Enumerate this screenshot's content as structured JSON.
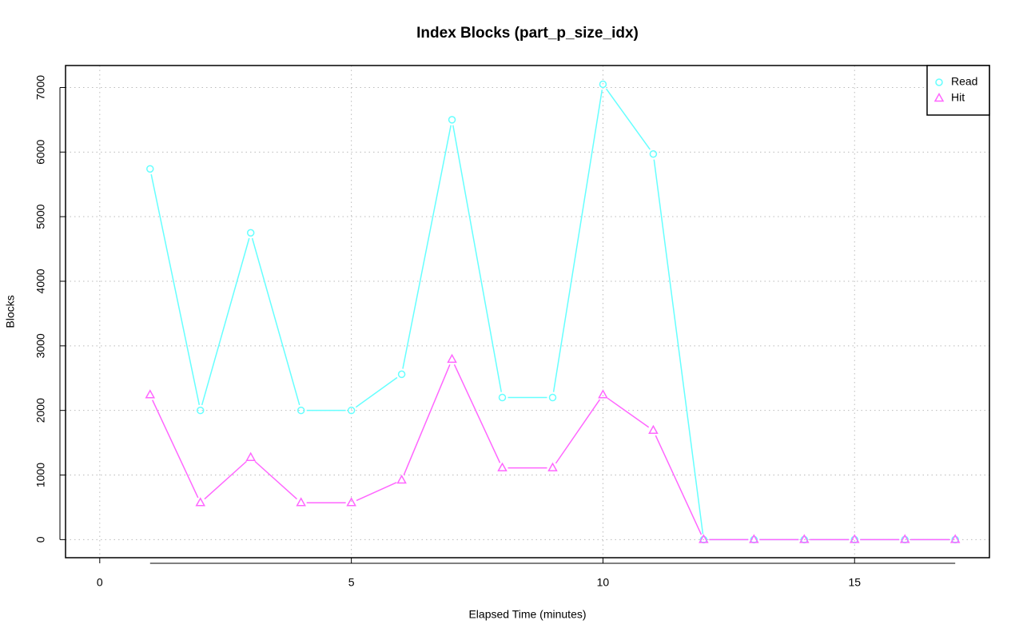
{
  "chart_data": {
    "type": "line",
    "title": "Index Blocks (part_p_size_idx)",
    "x_label": "Elapsed Time (minutes)",
    "y_label": "Blocks",
    "x": [
      1,
      2,
      3,
      4,
      5,
      6,
      7,
      8,
      9,
      10,
      11,
      12,
      13,
      14,
      15,
      16,
      17
    ],
    "series": [
      {
        "name": "Read",
        "color": "#66ffff",
        "marker": "circle",
        "values": [
          5740,
          2000,
          4750,
          2000,
          2000,
          2560,
          6500,
          2200,
          2200,
          7050,
          5970,
          0,
          0,
          0,
          0,
          0,
          0
        ]
      },
      {
        "name": "Hit",
        "color": "#ff66ff",
        "marker": "triangle",
        "values": [
          2240,
          570,
          1270,
          570,
          570,
          920,
          2790,
          1110,
          1110,
          2240,
          1690,
          0,
          0,
          0,
          0,
          0,
          0
        ]
      }
    ],
    "xlim": [
      -0.68,
      17.68
    ],
    "xticks": [
      0,
      5,
      10,
      15
    ],
    "ylim": [
      -280,
      7340
    ],
    "yticks": [
      0,
      1000,
      2000,
      3000,
      4000,
      5000,
      6000,
      7000
    ],
    "grid": true,
    "legend": "top-right"
  }
}
